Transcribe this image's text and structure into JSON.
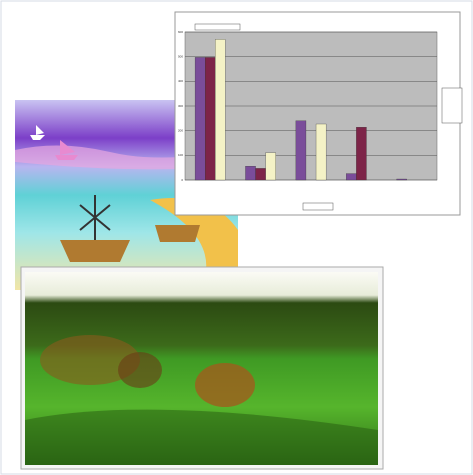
{
  "chart_data": {
    "type": "bar",
    "categories": [
      null,
      null,
      null,
      null,
      null
    ],
    "series": [
      {
        "color": "#7a4d9a",
        "values": [
          497,
          56,
          240,
          26,
          4
        ]
      },
      {
        "color": "#7d2448",
        "values": [
          497,
          47,
          0,
          214,
          0
        ]
      },
      {
        "color": "#f4f2c6",
        "values": [
          570,
          111,
          227,
          0,
          0
        ]
      }
    ],
    "ylim": [
      0,
      600
    ],
    "yticks": [
      0,
      100,
      200,
      300,
      400,
      500,
      600
    ],
    "grid": true
  }
}
